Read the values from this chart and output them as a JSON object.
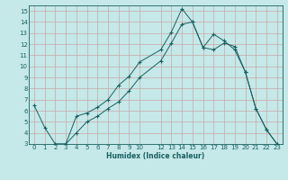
{
  "xlabel": "Humidex (Indice chaleur)",
  "bg_color": "#c5e8e8",
  "grid_color": "#c8a8a8",
  "line_color": "#1a6060",
  "xlim": [
    -0.5,
    23.5
  ],
  "ylim": [
    3,
    15.5
  ],
  "xticks": [
    0,
    1,
    2,
    3,
    4,
    5,
    6,
    7,
    8,
    9,
    10,
    12,
    13,
    14,
    15,
    16,
    17,
    18,
    19,
    20,
    21,
    22,
    23
  ],
  "yticks": [
    3,
    4,
    5,
    6,
    7,
    8,
    9,
    10,
    11,
    12,
    13,
    14,
    15
  ],
  "line1_x": [
    0,
    1,
    2,
    3,
    4,
    5,
    6,
    7,
    8,
    9,
    10,
    12,
    13,
    14,
    15,
    16,
    17,
    18,
    19,
    20,
    21,
    22,
    23
  ],
  "line1_y": [
    6.5,
    4.5,
    3.0,
    3.0,
    5.5,
    5.8,
    6.3,
    7.0,
    8.3,
    9.1,
    10.4,
    11.5,
    13.1,
    15.2,
    14.0,
    11.7,
    12.9,
    12.3,
    11.5,
    9.5,
    6.2,
    4.3,
    3.0
  ],
  "line2_x": [
    2,
    3,
    4,
    5,
    6,
    7,
    8,
    9,
    10,
    12,
    13,
    14,
    15,
    16,
    17,
    18,
    19,
    20,
    21,
    22,
    23
  ],
  "line2_y": [
    3.0,
    3.0,
    4.0,
    5.0,
    5.5,
    6.2,
    6.8,
    7.8,
    9.0,
    10.5,
    12.1,
    13.8,
    14.0,
    11.7,
    11.5,
    12.1,
    11.8,
    9.5,
    6.2,
    4.3,
    3.0
  ],
  "line3_x": [
    2,
    3,
    20,
    23
  ],
  "line3_y": [
    3.0,
    3.0,
    3.0,
    3.0
  ]
}
